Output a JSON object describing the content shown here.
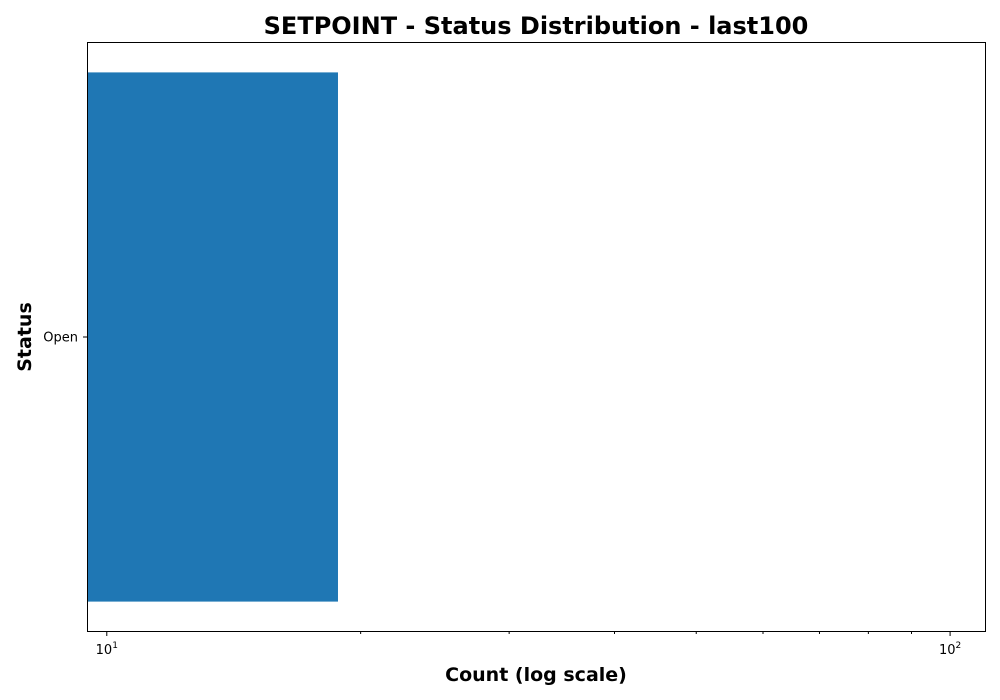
{
  "chart_data": {
    "type": "bar",
    "orientation": "horizontal",
    "title": "SETPOINT - Status Distribution - last100",
    "xlabel": "Count (log scale)",
    "ylabel": "Status",
    "x_scale": "log",
    "xlim": [
      9.5,
      110
    ],
    "categories": [
      "Open"
    ],
    "values": [
      18.8
    ],
    "x_major_ticks": [
      {
        "value": 10,
        "base": "10",
        "exponent": "1"
      },
      {
        "value": 100,
        "base": "10",
        "exponent": "2"
      }
    ],
    "x_minor_ticks": [
      20,
      30,
      40,
      50,
      60,
      70,
      80,
      90
    ],
    "grid": false,
    "legend": "none",
    "colors": {
      "bar": "#1f77b4",
      "axes": "#000000",
      "background": "#ffffff"
    }
  }
}
